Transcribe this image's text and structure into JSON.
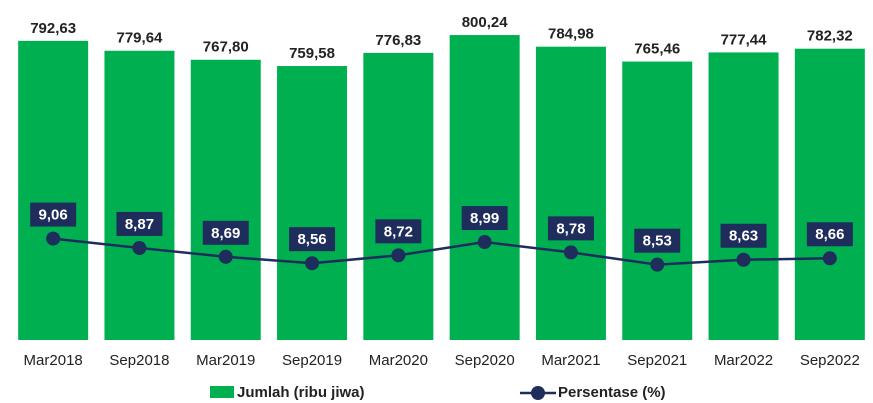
{
  "chart_data": {
    "type": "bar-line",
    "categories": [
      "Mar2018",
      "Sep2018",
      "Mar2019",
      "Sep2019",
      "Mar2020",
      "Sep2020",
      "Mar2021",
      "Sep2021",
      "Mar2022",
      "Sep2022"
    ],
    "ylim": [
      400,
      820
    ],
    "y2lim": [
      7,
      13.5
    ],
    "series": [
      {
        "name": "Jumlah (ribu jiwa)",
        "type": "bar",
        "color": "#00b050",
        "values": [
          792.63,
          779.64,
          767.8,
          759.58,
          776.83,
          800.24,
          784.98,
          765.46,
          777.44,
          782.32
        ],
        "value_labels": [
          "792,63",
          "779,64",
          "767,80",
          "759,58",
          "776,83",
          "800,24",
          "784,98",
          "765,46",
          "777,44",
          "782,32"
        ]
      },
      {
        "name": "Persentase (%)",
        "type": "line",
        "axis": "y2",
        "color": "#1f2d5c",
        "values": [
          9.06,
          8.87,
          8.69,
          8.56,
          8.72,
          8.99,
          8.78,
          8.53,
          8.63,
          8.66
        ],
        "value_labels": [
          "9,06",
          "8,87",
          "8,69",
          "8,56",
          "8,72",
          "8,99",
          "8,78",
          "8,53",
          "8,63",
          "8,66"
        ]
      }
    ],
    "grid": false
  }
}
